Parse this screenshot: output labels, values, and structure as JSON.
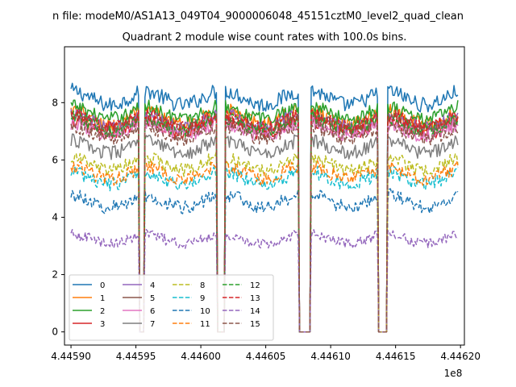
{
  "chart_data": {
    "type": "line",
    "suptitle": "n file: modeM0/AS1A13_049T04_9000006048_45151cztM0_level2_quad_clean",
    "title": "Quadrant 2 module wise count rates with 100.0s bins.",
    "xlabel": "",
    "ylabel": "",
    "x_offset_label": "1e8",
    "xlim": [
      444589500,
      444620300
    ],
    "ylim": [
      -0.46,
      9.95
    ],
    "xticks": [
      444590000,
      444595000,
      444600000,
      444605000,
      444610000,
      444615000,
      444620000
    ],
    "xtick_labels": [
      "4.44590",
      "4.44595",
      "4.44600",
      "4.44605",
      "4.44610",
      "4.44615",
      "4.44620"
    ],
    "yticks": [
      0,
      2,
      4,
      6,
      8
    ],
    "ytick_labels": [
      "0",
      "2",
      "4",
      "6",
      "8"
    ],
    "grid": false,
    "legend_position": "lower-left",
    "legend_columns": 4,
    "time_range": [
      444590000,
      444619800
    ],
    "bin_width_data_units": 100,
    "gaps": [
      [
        444595300,
        444595600
      ],
      [
        444601300,
        444601800
      ],
      [
        444607600,
        444608400
      ],
      [
        444613700,
        444614300
      ]
    ],
    "series": [
      {
        "name": "0",
        "color": "#1f77b4",
        "dash": "solid",
        "base": 8.1,
        "amp": 0.45
      },
      {
        "name": "1",
        "color": "#ff7f0e",
        "dash": "solid",
        "base": 7.4,
        "amp": 0.45
      },
      {
        "name": "2",
        "color": "#2ca02c",
        "dash": "solid",
        "base": 7.6,
        "amp": 0.4
      },
      {
        "name": "3",
        "color": "#d62728",
        "dash": "solid",
        "base": 7.1,
        "amp": 0.4
      },
      {
        "name": "4",
        "color": "#9467bd",
        "dash": "solid",
        "base": 7.3,
        "amp": 0.4
      },
      {
        "name": "5",
        "color": "#8c564b",
        "dash": "solid",
        "base": 7.2,
        "amp": 0.4
      },
      {
        "name": "6",
        "color": "#e377c2",
        "dash": "solid",
        "base": 7.0,
        "amp": 0.4
      },
      {
        "name": "7",
        "color": "#7f7f7f",
        "dash": "solid",
        "base": 6.4,
        "amp": 0.4
      },
      {
        "name": "8",
        "color": "#bcbd22",
        "dash": "dashed",
        "base": 5.8,
        "amp": 0.4
      },
      {
        "name": "9",
        "color": "#17becf",
        "dash": "dashed",
        "base": 5.3,
        "amp": 0.4
      },
      {
        "name": "10",
        "color": "#1f77b4",
        "dash": "dashed",
        "base": 4.5,
        "amp": 0.4
      },
      {
        "name": "11",
        "color": "#ff7f0e",
        "dash": "dashed",
        "base": 5.5,
        "amp": 0.4
      },
      {
        "name": "12",
        "color": "#2ca02c",
        "dash": "dashed",
        "base": 7.2,
        "amp": 0.4
      },
      {
        "name": "13",
        "color": "#d62728",
        "dash": "dashed",
        "base": 7.3,
        "amp": 0.4
      },
      {
        "name": "14",
        "color": "#9467bd",
        "dash": "dashed",
        "base": 3.2,
        "amp": 0.3
      },
      {
        "name": "15",
        "color": "#8c564b",
        "dash": "dashed",
        "base": 6.9,
        "amp": 0.4
      }
    ]
  }
}
